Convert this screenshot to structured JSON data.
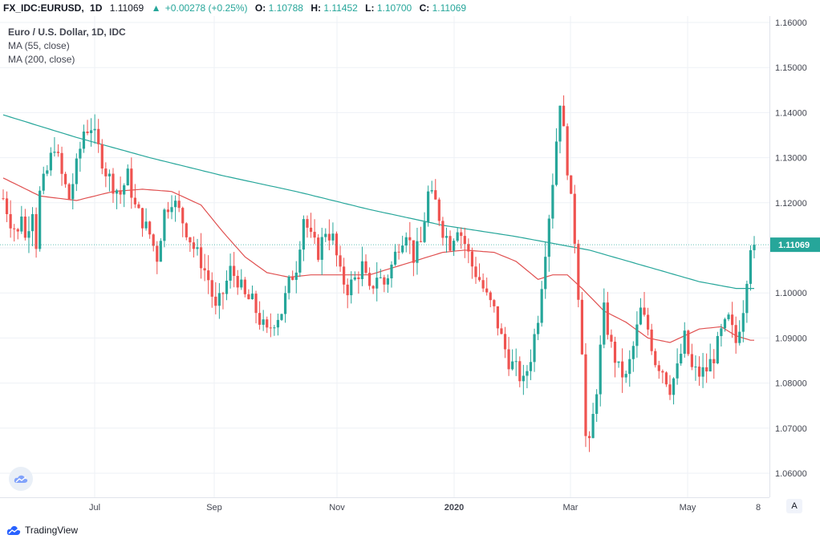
{
  "header": {
    "symbol": "FX_IDC:EURUSD,",
    "timeframe": "1D",
    "last": "1.11069",
    "change_arrow": "▲",
    "change": "+0.00278 (+0.25%)",
    "o_label": "O:",
    "o_value": "1.10788",
    "h_label": "H:",
    "h_value": "1.11452",
    "l_label": "L:",
    "l_value": "1.10700",
    "c_label": "C:",
    "c_value": "1.11069"
  },
  "legend": {
    "title": "Euro / U.S. Dollar, 1D, IDC",
    "ma1": "MA (55, close)",
    "ma2": "MA (200, close)"
  },
  "footer": {
    "brand": "TradingView",
    "auto_button": "A"
  },
  "colors": {
    "up": "#26a69a",
    "down": "#ef5350",
    "ma55": "#e05050",
    "ma200": "#26a69a",
    "price_tag": "#26a69a",
    "grid": "#eef1f6"
  },
  "chart_data": {
    "type": "candlestick",
    "symbol": "FX_IDC:EURUSD",
    "interval": "1D",
    "ylim": [
      1.06,
      1.16
    ],
    "y_ticks": [
      "1.16000",
      "1.15000",
      "1.14000",
      "1.13000",
      "1.12000",
      "1.11000",
      "1.10000",
      "1.09000",
      "1.08000",
      "1.07000",
      "1.06000"
    ],
    "x_ticks": [
      "Jul",
      "Sep",
      "Nov",
      "2020",
      "Mar",
      "May",
      "8"
    ],
    "last_price_label": "1.11069",
    "last_price": 1.11069,
    "price_path": [
      [
        0,
        1.121
      ],
      [
        2,
        1.116
      ],
      [
        4,
        1.113
      ],
      [
        5,
        1.118
      ],
      [
        6,
        1.112
      ],
      [
        8,
        1.119
      ],
      [
        9,
        1.111
      ],
      [
        10,
        1.122
      ],
      [
        12,
        1.127
      ],
      [
        14,
        1.133
      ],
      [
        16,
        1.126
      ],
      [
        18,
        1.121
      ],
      [
        20,
        1.128
      ],
      [
        22,
        1.136
      ],
      [
        24,
        1.137
      ],
      [
        26,
        1.132
      ],
      [
        28,
        1.127
      ],
      [
        30,
        1.124
      ],
      [
        32,
        1.122
      ],
      [
        34,
        1.126
      ],
      [
        36,
        1.119
      ],
      [
        38,
        1.116
      ],
      [
        40,
        1.113
      ],
      [
        42,
        1.108
      ],
      [
        44,
        1.118
      ],
      [
        46,
        1.121
      ],
      [
        48,
        1.118
      ],
      [
        50,
        1.114
      ],
      [
        52,
        1.11
      ],
      [
        54,
        1.107
      ],
      [
        56,
        1.103
      ],
      [
        58,
        1.096
      ],
      [
        60,
        1.1
      ],
      [
        62,
        1.105
      ],
      [
        64,
        1.103
      ],
      [
        66,
        1.099
      ],
      [
        68,
        1.098
      ],
      [
        70,
        1.094
      ],
      [
        72,
        1.091
      ],
      [
        74,
        1.094
      ],
      [
        76,
        1.096
      ],
      [
        78,
        1.102
      ],
      [
        80,
        1.106
      ],
      [
        82,
        1.117
      ],
      [
        84,
        1.112
      ],
      [
        86,
        1.109
      ],
      [
        88,
        1.114
      ],
      [
        90,
        1.112
      ],
      [
        92,
        1.104
      ],
      [
        94,
        1.101
      ],
      [
        96,
        1.103
      ],
      [
        98,
        1.106
      ],
      [
        100,
        1.1
      ],
      [
        102,
        1.104
      ],
      [
        104,
        1.102
      ],
      [
        106,
        1.106
      ],
      [
        108,
        1.111
      ],
      [
        110,
        1.114
      ],
      [
        112,
        1.108
      ],
      [
        114,
        1.111
      ],
      [
        116,
        1.122
      ],
      [
        118,
        1.12
      ],
      [
        120,
        1.114
      ],
      [
        122,
        1.111
      ],
      [
        124,
        1.115
      ],
      [
        126,
        1.111
      ],
      [
        128,
        1.106
      ],
      [
        130,
        1.103
      ],
      [
        132,
        1.099
      ],
      [
        134,
        1.096
      ],
      [
        136,
        1.09
      ],
      [
        138,
        1.085
      ],
      [
        140,
        1.083
      ],
      [
        142,
        1.08
      ],
      [
        144,
        1.086
      ],
      [
        146,
        1.095
      ],
      [
        148,
        1.11
      ],
      [
        150,
        1.125
      ],
      [
        152,
        1.143
      ],
      [
        154,
        1.128
      ],
      [
        156,
        1.112
      ],
      [
        158,
        1.088
      ],
      [
        159,
        1.068
      ],
      [
        160,
        1.066
      ],
      [
        162,
        1.079
      ],
      [
        164,
        1.096
      ],
      [
        166,
        1.088
      ],
      [
        168,
        1.083
      ],
      [
        170,
        1.081
      ],
      [
        172,
        1.088
      ],
      [
        174,
        1.096
      ],
      [
        176,
        1.092
      ],
      [
        178,
        1.085
      ],
      [
        180,
        1.083
      ],
      [
        182,
        1.079
      ],
      [
        184,
        1.083
      ],
      [
        186,
        1.09
      ],
      [
        188,
        1.083
      ],
      [
        190,
        1.082
      ],
      [
        192,
        1.083
      ],
      [
        194,
        1.086
      ],
      [
        196,
        1.091
      ],
      [
        198,
        1.094
      ],
      [
        200,
        1.089
      ],
      [
        202,
        1.097
      ],
      [
        204,
        1.111
      ]
    ],
    "series": [
      {
        "name": "MA (55, close)",
        "values": [
          [
            0,
            1.1255
          ],
          [
            10,
            1.1215
          ],
          [
            20,
            1.1205
          ],
          [
            30,
            1.1225
          ],
          [
            38,
            1.123
          ],
          [
            46,
            1.1225
          ],
          [
            54,
            1.1195
          ],
          [
            60,
            1.1135
          ],
          [
            66,
            1.108
          ],
          [
            72,
            1.1045
          ],
          [
            78,
            1.1035
          ],
          [
            84,
            1.104
          ],
          [
            90,
            1.104
          ],
          [
            100,
            1.104
          ],
          [
            108,
            1.106
          ],
          [
            114,
            1.1075
          ],
          [
            120,
            1.109
          ],
          [
            126,
            1.1095
          ],
          [
            134,
            1.109
          ],
          [
            140,
            1.107
          ],
          [
            146,
            1.103
          ],
          [
            150,
            1.104
          ],
          [
            154,
            1.104
          ],
          [
            158,
            1.101
          ],
          [
            164,
            1.096
          ],
          [
            170,
            1.0935
          ],
          [
            176,
            1.09
          ],
          [
            182,
            1.089
          ],
          [
            190,
            1.092
          ],
          [
            196,
            1.0925
          ],
          [
            200,
            1.0905
          ],
          [
            204,
            1.0895
          ]
        ]
      },
      {
        "name": "MA (200, close)",
        "values": [
          [
            0,
            1.1395
          ],
          [
            20,
            1.1345
          ],
          [
            40,
            1.13
          ],
          [
            60,
            1.126
          ],
          [
            80,
            1.1225
          ],
          [
            100,
            1.1185
          ],
          [
            120,
            1.115
          ],
          [
            140,
            1.1125
          ],
          [
            160,
            1.1095
          ],
          [
            175,
            1.106
          ],
          [
            190,
            1.1025
          ],
          [
            200,
            1.101
          ],
          [
            204,
            1.101
          ]
        ]
      }
    ]
  }
}
